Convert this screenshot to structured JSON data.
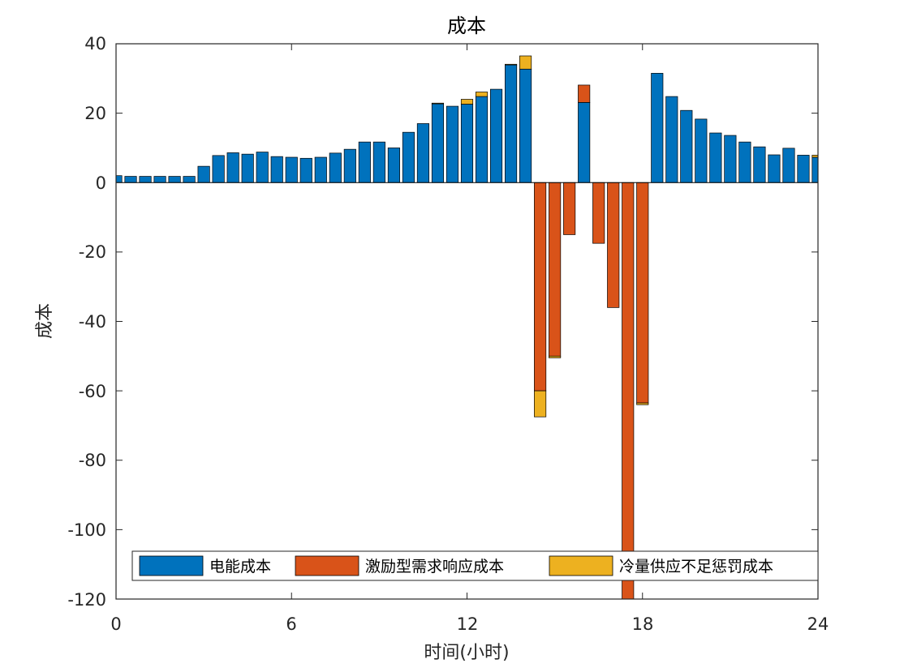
{
  "chart_data": {
    "type": "bar",
    "stacked": true,
    "title": "成本",
    "xlabel": "时间(小时)",
    "ylabel": "成本",
    "xlim": [
      0,
      24
    ],
    "ylim": [
      -120,
      40
    ],
    "xticks": [
      "0",
      "6",
      "12",
      "18",
      "24"
    ],
    "yticks": [
      "40",
      "20",
      "0",
      "-20",
      "-40",
      "-60",
      "-80",
      "-100",
      "-120"
    ],
    "grid": false,
    "legend_position": "bottom",
    "legend_orientation": "horizontal",
    "x": [
      0,
      0.5,
      1,
      1.5,
      2,
      2.5,
      3,
      3.5,
      4,
      4.5,
      5,
      5.5,
      6,
      6.5,
      7,
      7.5,
      8,
      8.5,
      9,
      9.5,
      10,
      10.5,
      11,
      11.5,
      12,
      12.5,
      13,
      13.5,
      14,
      14.5,
      15,
      15.5,
      16,
      16.5,
      17,
      17.5,
      18,
      18.5,
      19,
      19.5,
      20,
      20.5,
      21,
      21.5,
      22,
      22.5,
      23,
      23.5,
      24
    ],
    "series": [
      {
        "name": "电能成本",
        "color": "#0072BD",
        "values": [
          2.0,
          1.8,
          1.8,
          1.8,
          1.8,
          1.8,
          4.7,
          7.8,
          8.6,
          8.2,
          8.8,
          7.5,
          7.3,
          7.0,
          7.3,
          8.5,
          9.6,
          11.7,
          11.7,
          10.0,
          14.5,
          17.0,
          22.7,
          22.0,
          22.6,
          24.8,
          26.9,
          33.9,
          32.7,
          0,
          0,
          0,
          23.1,
          0,
          0,
          0,
          0,
          31.5,
          24.8,
          20.8,
          18.3,
          14.3,
          13.6,
          11.7,
          10.3,
          8.0,
          9.9,
          7.9,
          7.3
        ]
      },
      {
        "name": "激励型需求响应成本",
        "color": "#D95319",
        "values": [
          0,
          0,
          0,
          0,
          0,
          0,
          0,
          0,
          0,
          0,
          0,
          0,
          0,
          0,
          0,
          0,
          0,
          0,
          0,
          0,
          0,
          0,
          0,
          0,
          0,
          0,
          0,
          0,
          0,
          -60,
          -50,
          -15,
          5,
          -17.5,
          -36,
          -120,
          -63.5,
          0,
          0,
          0,
          0,
          0,
          0,
          0,
          0,
          0,
          0,
          0,
          0
        ]
      },
      {
        "name": "冷量供应不足惩罚成本",
        "color": "#EDB120",
        "values": [
          0,
          0,
          0,
          0,
          0,
          0,
          0,
          0,
          0,
          0,
          0,
          0,
          0,
          0,
          0,
          0,
          0,
          0,
          0,
          0,
          0,
          0,
          0.2,
          0,
          1.4,
          1.3,
          0,
          0.2,
          3.8,
          -7.5,
          -0.5,
          0,
          0,
          0,
          0,
          0,
          -0.5,
          0,
          0,
          0,
          0,
          0,
          0,
          0,
          0,
          0,
          0,
          0,
          0.6
        ]
      }
    ]
  }
}
